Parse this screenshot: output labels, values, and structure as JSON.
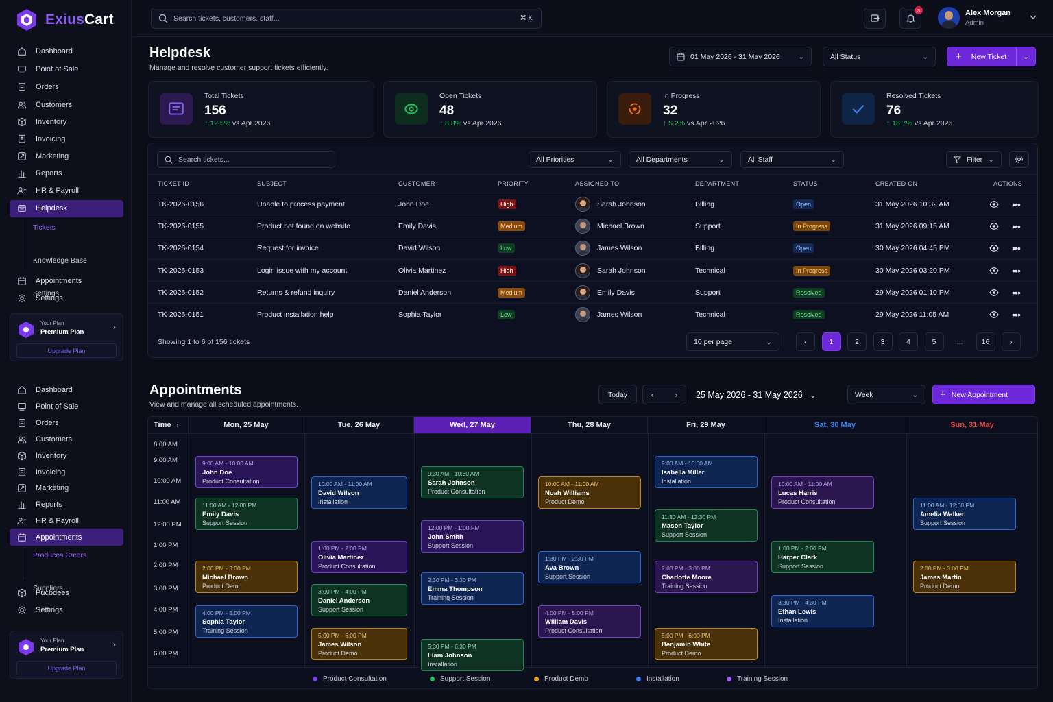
{
  "brand": {
    "name_a": "Exius",
    "name_b": "Cart"
  },
  "search": {
    "placeholder": "Search tickets, customers, staff...",
    "shortcut": "⌘ K"
  },
  "notifications": {
    "count": "3"
  },
  "user": {
    "name": "Alex Morgan",
    "role": "Admin"
  },
  "sidebar_top": {
    "items": [
      {
        "label": "Dashboard",
        "icon": "home-icon"
      },
      {
        "label": "Point of Sale",
        "icon": "pos-icon"
      },
      {
        "label": "Orders",
        "icon": "orders-icon"
      },
      {
        "label": "Customers",
        "icon": "users-icon"
      },
      {
        "label": "Inventory",
        "icon": "box-icon"
      },
      {
        "label": "Invoicing",
        "icon": "invoice-icon"
      },
      {
        "label": "Marketing",
        "icon": "marketing-icon"
      },
      {
        "label": "Reports",
        "icon": "chart-icon"
      },
      {
        "label": "HR & Payroll",
        "icon": "hr-icon"
      },
      {
        "label": "Helpdesk",
        "icon": "helpdesk-icon"
      }
    ],
    "sub": [
      "Tickets",
      "Knowledge Base",
      "Settings"
    ],
    "after": [
      {
        "label": "Appointments",
        "icon": "calendar-icon"
      },
      {
        "label": "Settings",
        "icon": "gear-icon"
      }
    ]
  },
  "sidebar_bottom": {
    "items": [
      {
        "label": "Dashboard"
      },
      {
        "label": "Point of Sale"
      },
      {
        "label": "Orders"
      },
      {
        "label": "Customers"
      },
      {
        "label": "Inventory"
      },
      {
        "label": "Invoicing"
      },
      {
        "label": "Marketing"
      },
      {
        "label": "Reports"
      },
      {
        "label": "HR & Payroll"
      },
      {
        "label": "Appointments"
      }
    ],
    "sub": [
      "Produces Crcers",
      "Suppliers"
    ],
    "after": [
      {
        "label": "Pucbdees"
      },
      {
        "label": "Settings"
      }
    ]
  },
  "plan": {
    "small": "Your Plan",
    "name": "Premium Plan",
    "upgrade": "Upgrade Plan"
  },
  "helpdesk": {
    "title": "Helpdesk",
    "subtitle": "Manage and resolve customer support tickets efficiently.",
    "date_range": "01 May 2026 - 31 May 2026",
    "status_filter": "All Status",
    "new_ticket": "New Ticket",
    "stats": [
      {
        "label": "Total Tickets",
        "value": "156",
        "trend": "12.5%",
        "vs": "vs Apr 2026",
        "color": "#8b5cf6"
      },
      {
        "label": "Open Tickets",
        "value": "48",
        "trend": "8.3%",
        "vs": "vs Apr 2026",
        "color": "#22c55e"
      },
      {
        "label": "In Progress",
        "value": "32",
        "trend": "5.2%",
        "vs": "vs Apr 2026",
        "color": "#f97316"
      },
      {
        "label": "Resolved Tickets",
        "value": "76",
        "trend": "18.7%",
        "vs": "vs Apr 2026",
        "color": "#3b82f6"
      }
    ],
    "table_search": "Search tickets...",
    "priorities": "All Priorities",
    "departments": "All Departments",
    "staff": "All Staff",
    "filter": "Filter",
    "columns": [
      "TICKET ID",
      "SUBJECT",
      "CUSTOMER",
      "PRIORITY",
      "ASSIGNED TO",
      "DEPARTMENT",
      "STATUS",
      "CREATED ON",
      "ACTIONS"
    ],
    "rows": [
      {
        "id": "TK-2026-0156",
        "subject": "Unable to process payment",
        "customer": "John Doe",
        "priority": "High",
        "assigned": "Sarah Johnson",
        "dept": "Billing",
        "status": "Open",
        "created": "31 May 2026 10:32 AM"
      },
      {
        "id": "TK-2026-0155",
        "subject": "Product not found on website",
        "customer": "Emily Davis",
        "priority": "Medium",
        "assigned": "Michael Brown",
        "dept": "Support",
        "status": "In Progress",
        "created": "31 May 2026 09:15 AM"
      },
      {
        "id": "TK-2026-0154",
        "subject": "Request for invoice",
        "customer": "David Wilson",
        "priority": "Low",
        "assigned": "James Wilson",
        "dept": "Billing",
        "status": "Open",
        "created": "30 May 2026 04:45 PM"
      },
      {
        "id": "TK-2026-0153",
        "subject": "Login issue with my account",
        "customer": "Olivia Martinez",
        "priority": "High",
        "assigned": "Sarah Johnson",
        "dept": "Technical",
        "status": "In Progress",
        "created": "30 May 2026 03:20 PM"
      },
      {
        "id": "TK-2026-0152",
        "subject": "Returns & refund inquiry",
        "customer": "Daniel Anderson",
        "priority": "Medium",
        "assigned": "Emily Davis",
        "dept": "Support",
        "status": "Resolved",
        "created": "29 May 2026 01:10 PM"
      },
      {
        "id": "TK-2026-0151",
        "subject": "Product installation help",
        "customer": "Sophia Taylor",
        "priority": "Low",
        "assigned": "James Wilson",
        "dept": "Technical",
        "status": "Resolved",
        "created": "29 May 2026 11:05 AM"
      }
    ],
    "showing": "Showing 1 to 6 of 156 tickets",
    "per_page": "10 per page",
    "pages": [
      "1",
      "2",
      "3",
      "4",
      "5",
      "...",
      "16"
    ]
  },
  "appointments": {
    "title": "Appointments",
    "subtitle": "View and manage all scheduled appointments.",
    "today": "Today",
    "range": "25 May 2026 - 31 May 2026",
    "view": "Week",
    "new_label": "New Appointment",
    "time_label": "Time",
    "days": [
      "Mon, 25 May",
      "Tue, 26 May",
      "Wed, 27 May",
      "Thu, 28 May",
      "Fri, 29 May",
      "Sat, 30 May",
      "Sun, 31 May"
    ],
    "times": [
      "8:00 AM",
      "9:00 AM",
      "10:00 AM",
      "11:00 AM",
      "12:00 PM",
      "1:00 PM",
      "2:00 PM",
      "3:00 PM",
      "4:00 PM",
      "5:00 PM",
      "6:00 PM"
    ],
    "events": [
      {
        "day": 0,
        "time": "9:00 AM - 10:00 AM",
        "name": "John Doe",
        "kind": "Product Consultation",
        "type": "pc"
      },
      {
        "day": 0,
        "time": "11:00 AM - 12:00 PM",
        "name": "Emily Davis",
        "kind": "Support Session",
        "type": "ss"
      },
      {
        "day": 0,
        "time": "2:00 PM - 3:00 PM",
        "name": "Michael Brown",
        "kind": "Product Demo",
        "type": "pd"
      },
      {
        "day": 0,
        "time": "4:00 PM - 5:00 PM",
        "name": "Sophia Taylor",
        "kind": "Training Session",
        "type": "in"
      },
      {
        "day": 1,
        "time": "10:00 AM - 11:00 AM",
        "name": "David Wilson",
        "kind": "Installation",
        "type": "in"
      },
      {
        "day": 1,
        "time": "1:00 PM - 2:00 PM",
        "name": "Olivia Martinez",
        "kind": "Product Consultation",
        "type": "pc"
      },
      {
        "day": 1,
        "time": "3:00 PM - 4:00 PM",
        "name": "Daniel Anderson",
        "kind": "Support Session",
        "type": "ss"
      },
      {
        "day": 1,
        "time": "5:00 PM - 6:00 PM",
        "name": "James Wilson",
        "kind": "Product Demo",
        "type": "pd"
      },
      {
        "day": 2,
        "time": "9:30 AM - 10:30 AM",
        "name": "Sarah Johnson",
        "kind": "Product Consultation",
        "type": "ss"
      },
      {
        "day": 2,
        "time": "12:00 PM - 1:00 PM",
        "name": "John Smith",
        "kind": "Support Session",
        "type": "pc"
      },
      {
        "day": 2,
        "time": "2:30 PM - 3:30 PM",
        "name": "Emma Thompson",
        "kind": "Training Session",
        "type": "in"
      },
      {
        "day": 2,
        "time": "5:30 PM - 6:30 PM",
        "name": "Liam Johnson",
        "kind": "Installation",
        "type": "ss"
      },
      {
        "day": 3,
        "time": "10:00 AM - 11:00 AM",
        "name": "Noah Williams",
        "kind": "Product Demo",
        "type": "pd"
      },
      {
        "day": 3,
        "time": "1:30 PM - 2:30 PM",
        "name": "Ava Brown",
        "kind": "Support Session",
        "type": "in"
      },
      {
        "day": 3,
        "time": "4:00 PM - 5:00 PM",
        "name": "William Davis",
        "kind": "Product Consultation",
        "type": "ts"
      },
      {
        "day": 4,
        "time": "9:00 AM - 10:00 AM",
        "name": "Isabella Miller",
        "kind": "Installation",
        "type": "in"
      },
      {
        "day": 4,
        "time": "11:30 AM - 12:30 PM",
        "name": "Mason Taylor",
        "kind": "Support Session",
        "type": "ss"
      },
      {
        "day": 4,
        "time": "2:00 PM - 3:00 PM",
        "name": "Charlotte Moore",
        "kind": "Training Session",
        "type": "ts"
      },
      {
        "day": 4,
        "time": "5:00 PM - 6:00 PM",
        "name": "Benjamin White",
        "kind": "Product Demo",
        "type": "pd"
      },
      {
        "day": 5,
        "time": "10:00 AM - 11:00 AM",
        "name": "Lucas Harris",
        "kind": "Product Consultation",
        "type": "ts"
      },
      {
        "day": 5,
        "time": "1:00 PM - 2:00 PM",
        "name": "Harper Clark",
        "kind": "Support Session",
        "type": "ss"
      },
      {
        "day": 5,
        "time": "3:30 PM - 4:30 PM",
        "name": "Ethan Lewis",
        "kind": "Installation",
        "type": "in"
      },
      {
        "day": 6,
        "time": "11:00 AM - 12:00 PM",
        "name": "Amelia Walker",
        "kind": "Support Session",
        "type": "in"
      },
      {
        "day": 6,
        "time": "2:00 PM - 3:00 PM",
        "name": "James Martin",
        "kind": "Product Demo",
        "type": "pd"
      }
    ],
    "legend": [
      {
        "label": "Product Consultation",
        "color": "#7c3aed"
      },
      {
        "label": "Support Session",
        "color": "#22c55e"
      },
      {
        "label": "Product Demo",
        "color": "#f59e0b"
      },
      {
        "label": "Installation",
        "color": "#3b82f6"
      },
      {
        "label": "Training Session",
        "color": "#a855f7"
      }
    ]
  }
}
